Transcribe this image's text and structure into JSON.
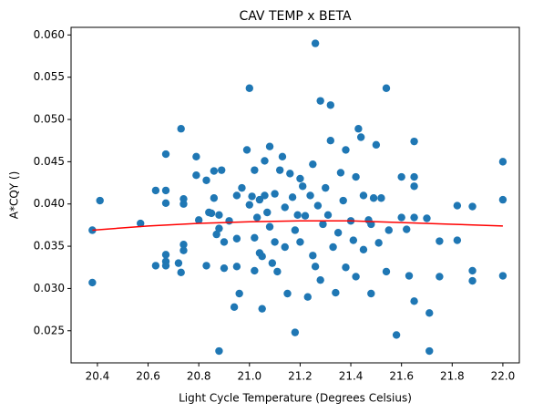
{
  "chart_data": {
    "type": "scatter",
    "title": "CAV TEMP x BETA",
    "x_label": "Light Cycle Temperature (Degrees Celsius)",
    "y_label": "A*CQY ()",
    "color": "#1f77b4",
    "x": [
      20.38,
      20.38,
      20.41,
      20.57,
      20.63,
      20.63,
      20.67,
      20.67,
      20.67,
      20.67,
      20.67,
      20.67,
      20.72,
      20.73,
      20.73,
      20.74,
      20.74,
      20.74,
      20.74,
      20.79,
      20.79,
      20.8,
      20.83,
      20.83,
      20.84,
      20.85,
      20.86,
      20.86,
      20.87,
      20.88,
      20.88,
      20.88,
      20.89,
      20.9,
      20.9,
      20.92,
      20.94,
      20.95,
      20.95,
      20.95,
      20.96,
      20.97,
      20.99,
      21.0,
      21.0,
      21.01,
      21.02,
      21.02,
      21.02,
      21.03,
      21.04,
      21.04,
      21.05,
      21.05,
      21.06,
      21.06,
      21.07,
      21.08,
      21.08,
      21.09,
      21.1,
      21.1,
      21.11,
      21.12,
      21.13,
      21.14,
      21.14,
      21.15,
      21.16,
      21.17,
      21.18,
      21.18,
      21.19,
      21.2,
      21.2,
      21.21,
      21.22,
      21.23,
      21.24,
      21.25,
      21.25,
      21.26,
      21.26,
      21.27,
      21.28,
      21.28,
      21.29,
      21.3,
      21.31,
      21.32,
      21.32,
      21.33,
      21.34,
      21.35,
      21.36,
      21.37,
      21.38,
      21.38,
      21.4,
      21.41,
      21.42,
      21.42,
      21.43,
      21.44,
      21.45,
      21.45,
      21.47,
      21.48,
      21.48,
      21.49,
      21.5,
      21.51,
      21.52,
      21.54,
      21.54,
      21.55,
      21.58,
      21.6,
      21.6,
      21.62,
      21.63,
      21.65,
      21.65,
      21.65,
      21.65,
      21.65,
      21.7,
      21.71,
      21.71,
      21.75,
      21.75,
      21.82,
      21.82,
      21.88,
      21.88,
      21.88,
      22.0,
      22.0,
      22.0
    ],
    "y": [
      0.0369,
      0.0307,
      0.0404,
      0.0377,
      0.0416,
      0.0327,
      0.0459,
      0.0416,
      0.0401,
      0.034,
      0.0332,
      0.0327,
      0.033,
      0.0489,
      0.0319,
      0.0406,
      0.04,
      0.0352,
      0.0345,
      0.0456,
      0.0434,
      0.0381,
      0.0428,
      0.0327,
      0.039,
      0.0389,
      0.0439,
      0.0407,
      0.0364,
      0.0226,
      0.0371,
      0.0387,
      0.044,
      0.0355,
      0.0324,
      0.038,
      0.0278,
      0.041,
      0.0359,
      0.0326,
      0.0294,
      0.0419,
      0.0464,
      0.0537,
      0.0399,
      0.0409,
      0.044,
      0.036,
      0.0321,
      0.0384,
      0.0405,
      0.0342,
      0.0276,
      0.0338,
      0.0451,
      0.041,
      0.039,
      0.0468,
      0.0373,
      0.033,
      0.0412,
      0.0355,
      0.032,
      0.044,
      0.0456,
      0.0396,
      0.0349,
      0.0294,
      0.0436,
      0.0408,
      0.0248,
      0.0369,
      0.0387,
      0.043,
      0.0355,
      0.0421,
      0.0386,
      0.029,
      0.041,
      0.0339,
      0.0447,
      0.059,
      0.0326,
      0.0398,
      0.0522,
      0.031,
      0.0376,
      0.0419,
      0.0387,
      0.0517,
      0.0475,
      0.0349,
      0.0295,
      0.0366,
      0.0437,
      0.0404,
      0.0464,
      0.0325,
      0.038,
      0.0357,
      0.0432,
      0.0314,
      0.0489,
      0.0479,
      0.041,
      0.0346,
      0.0381,
      0.0376,
      0.0294,
      0.0407,
      0.047,
      0.0354,
      0.0407,
      0.0537,
      0.032,
      0.0369,
      0.0245,
      0.0432,
      0.0384,
      0.037,
      0.0315,
      0.0474,
      0.0432,
      0.0421,
      0.0384,
      0.0285,
      0.0383,
      0.0271,
      0.0226,
      0.0356,
      0.0314,
      0.0398,
      0.0357,
      0.0397,
      0.0321,
      0.0309,
      0.045,
      0.0405,
      0.0315
    ],
    "fit": {
      "color": "red",
      "x": [
        20.38,
        20.6,
        20.8,
        21.0,
        21.2,
        21.4,
        21.6,
        21.8,
        22.0
      ],
      "y": [
        0.0369,
        0.0374,
        0.0377,
        0.0379,
        0.038,
        0.038,
        0.0378,
        0.0376,
        0.0374
      ]
    },
    "xlim": [
      20.296,
      22.065
    ],
    "ylim": [
      0.0212,
      0.0609
    ],
    "xticks": [
      20.4,
      20.6,
      20.8,
      {
        "value": 21,
        "label": "21.0"
      },
      21.2,
      21.4,
      21.6,
      21.8,
      {
        "value": 22,
        "label": "22.0"
      }
    ],
    "yticks": [
      0.025,
      {
        "value": 0.03,
        "label": "0.030"
      },
      0.035,
      {
        "value": 0.04,
        "label": "0.040"
      },
      0.045,
      {
        "value": 0.05,
        "label": "0.050"
      },
      0.055,
      {
        "value": 0.06,
        "label": "0.060"
      }
    ]
  }
}
